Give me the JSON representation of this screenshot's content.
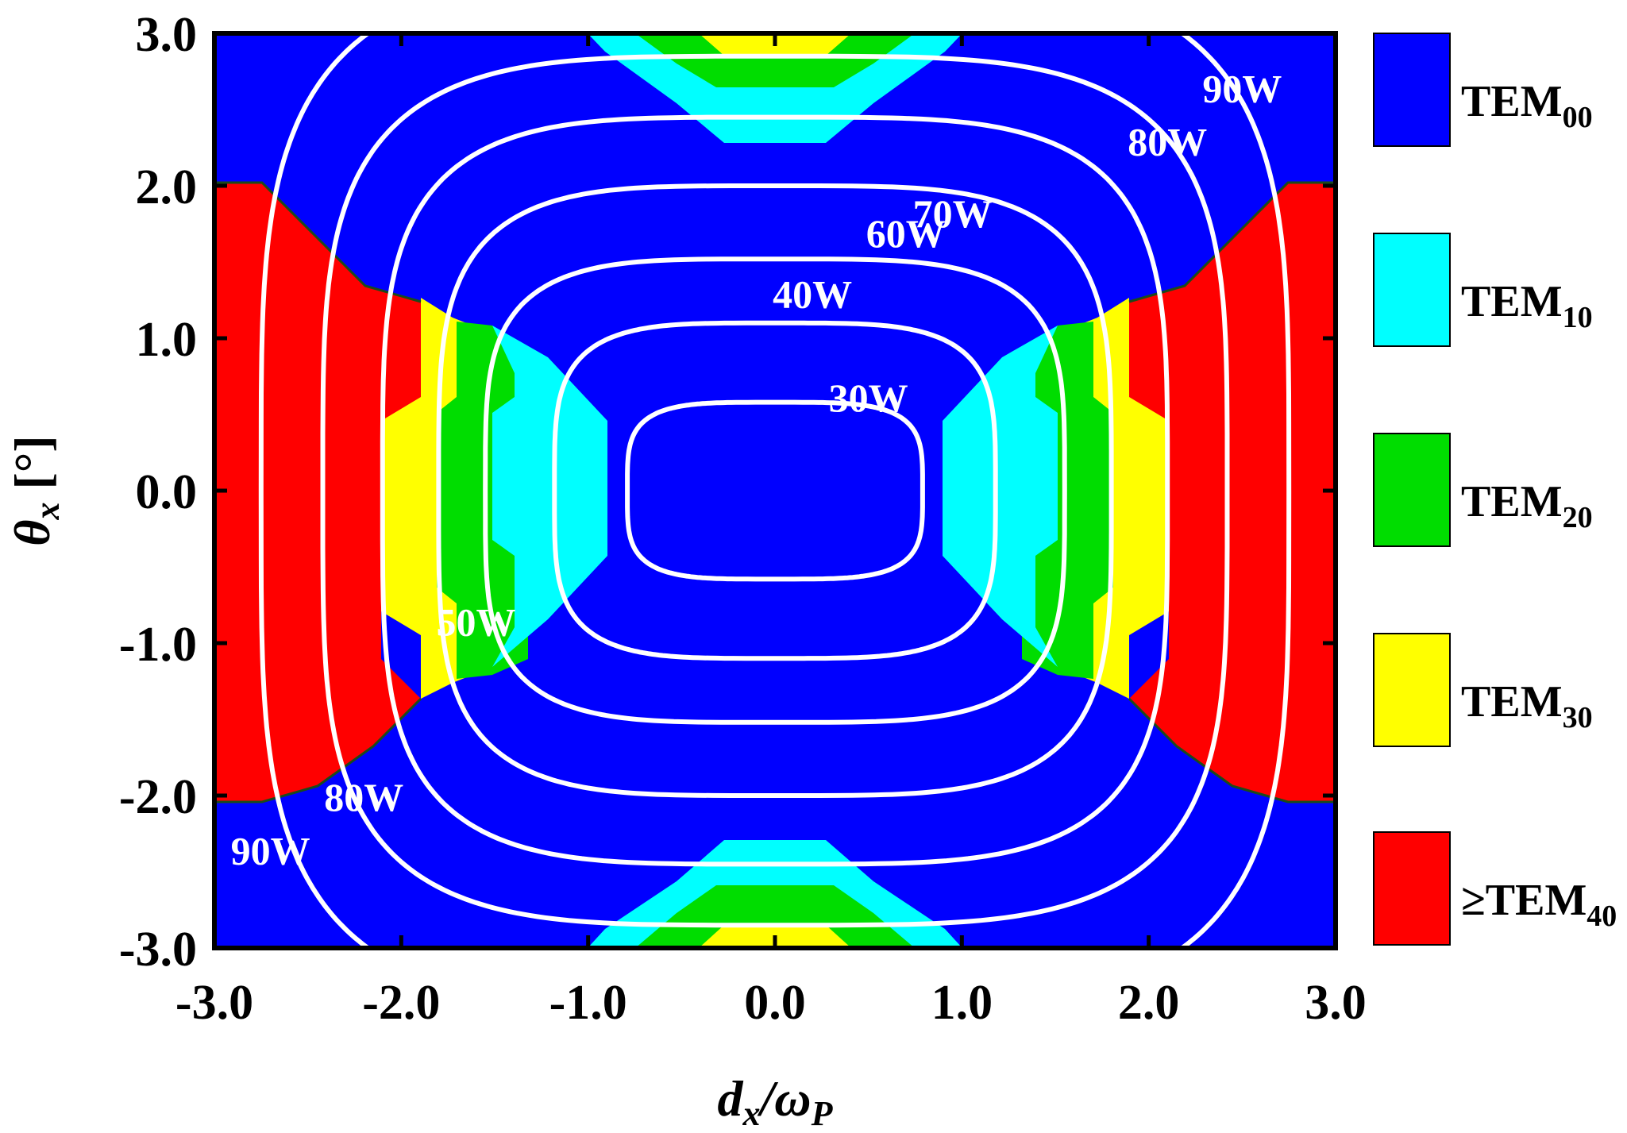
{
  "chart_data": {
    "type": "heatmap",
    "title": "",
    "xlabel_main": "d",
    "xlabel_sub1": "x",
    "xlabel_slash": "/ω",
    "xlabel_sub2": "P",
    "ylabel_main": "θ",
    "ylabel_sub": "x",
    "ylabel_unit": " [°]",
    "xlim": [
      -3.0,
      3.0
    ],
    "ylim": [
      -3.0,
      3.0
    ],
    "x_ticks": [
      "-3.0",
      "-2.0",
      "-1.0",
      "0.0",
      "1.0",
      "2.0",
      "3.0"
    ],
    "y_ticks": [
      "3.0",
      "2.0",
      "1.0",
      "0.0",
      "-1.0",
      "-2.0",
      "-3.0"
    ],
    "x_tick_values": [
      -3,
      -2,
      -1,
      0,
      1,
      2,
      3
    ],
    "y_tick_values": [
      3,
      2,
      1,
      0,
      -1,
      -2,
      -3
    ],
    "grid": false,
    "legend_position": "right",
    "mode_regions": [
      {
        "mode": "TEM00",
        "label_main": "TEM",
        "label_sub": "00",
        "color": "#0000ff"
      },
      {
        "mode": "TEM10",
        "label_main": "TEM",
        "label_sub": "10",
        "color": "#00ffff"
      },
      {
        "mode": "TEM20",
        "label_main": "TEM",
        "label_sub": "20",
        "color": "#00dd00"
      },
      {
        "mode": "TEM30",
        "label_main": "TEM",
        "label_sub": "30",
        "color": "#ffff00"
      },
      {
        "mode": "≥TEM40",
        "label_main": "≥TEM",
        "label_sub": "40",
        "color": "#ff0000"
      }
    ],
    "contour_lines": [
      {
        "level": "30W",
        "a": 0.79,
        "b": 0.58,
        "p": 4
      },
      {
        "level": "40W",
        "a": 1.18,
        "b": 1.1,
        "p": 4
      },
      {
        "level": "50W",
        "a": 1.55,
        "b": 1.52,
        "p": 4
      },
      {
        "level": "60W",
        "a": 1.8,
        "b": 2.0,
        "p": 4
      },
      {
        "level": "70W",
        "a": 2.1,
        "b": 2.45,
        "p": 4
      },
      {
        "level": "80W",
        "a": 2.42,
        "b": 2.85,
        "p": 4
      },
      {
        "level": "90W",
        "a": 2.75,
        "b": 3.4,
        "p": 4
      }
    ],
    "contour_labels": [
      {
        "text": "30W",
        "x": 0.5,
        "y": 0.52
      },
      {
        "text": "40W",
        "x": 0.2,
        "y": 1.2
      },
      {
        "text": "50W",
        "x": -1.6,
        "y": -0.95
      },
      {
        "text": "60W",
        "x": 0.7,
        "y": 1.6
      },
      {
        "text": "70W",
        "x": 0.95,
        "y": 1.73
      },
      {
        "text": "80W",
        "x": 2.1,
        "y": 2.2
      },
      {
        "text": "80W",
        "x": -2.2,
        "y": -2.1
      },
      {
        "text": "90W",
        "x": 2.5,
        "y": 2.55
      },
      {
        "text": "90W",
        "x": -2.7,
        "y": -2.45
      }
    ]
  }
}
